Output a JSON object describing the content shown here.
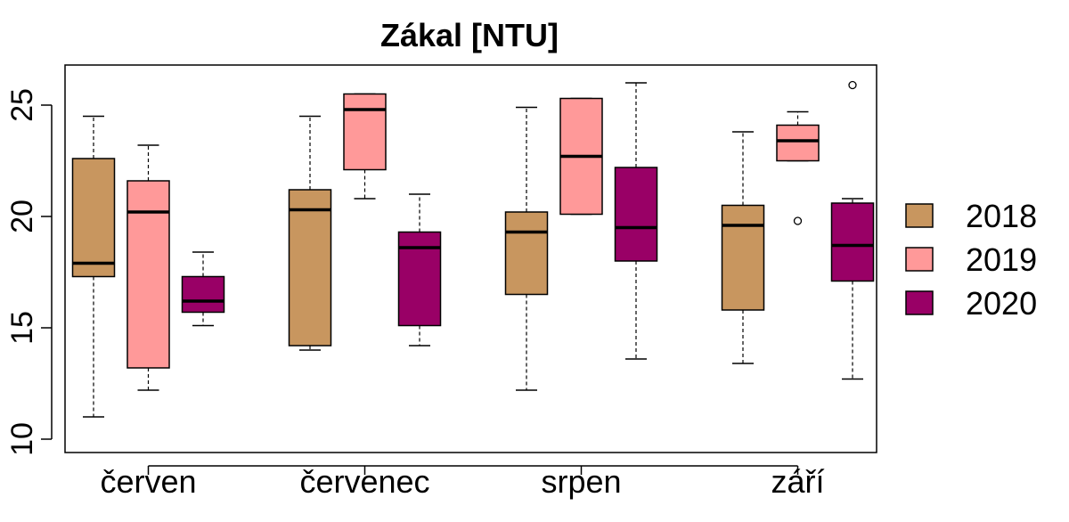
{
  "chart_data": {
    "type": "boxplot",
    "title": "Zákal [NTU]",
    "xlabel": "",
    "ylabel": "",
    "ylim": [
      9.4,
      26.8
    ],
    "yticks": [
      10,
      15,
      20,
      25
    ],
    "grid": false,
    "legend_position": "right",
    "categories": [
      "červen",
      "červenec",
      "srpen",
      "září"
    ],
    "series": [
      {
        "name": "2018",
        "color": "#c8965f",
        "boxes": [
          {
            "min": 11.0,
            "q1": 17.3,
            "median": 17.9,
            "q3": 22.6,
            "max": 24.5,
            "outliers": []
          },
          {
            "min": 14.0,
            "q1": 14.2,
            "median": 20.3,
            "q3": 21.2,
            "max": 24.5,
            "outliers": []
          },
          {
            "min": 12.2,
            "q1": 16.5,
            "median": 19.3,
            "q3": 20.2,
            "max": 24.9,
            "outliers": []
          },
          {
            "min": 13.4,
            "q1": 15.8,
            "median": 19.6,
            "q3": 20.5,
            "max": 23.8,
            "outliers": []
          }
        ]
      },
      {
        "name": "2019",
        "color": "#ff9999",
        "boxes": [
          {
            "min": 12.2,
            "q1": 13.2,
            "median": 20.2,
            "q3": 21.6,
            "max": 23.2,
            "outliers": []
          },
          {
            "min": 20.8,
            "q1": 22.1,
            "median": 24.8,
            "q3": 25.5,
            "max": 25.5,
            "outliers": []
          },
          {
            "min": 20.1,
            "q1": 20.1,
            "median": 22.7,
            "q3": 25.3,
            "max": 25.3,
            "outliers": []
          },
          {
            "min": 22.5,
            "q1": 22.5,
            "median": 23.4,
            "q3": 24.1,
            "max": 24.7,
            "outliers": [
              19.8
            ]
          }
        ]
      },
      {
        "name": "2020",
        "color": "#990066",
        "boxes": [
          {
            "min": 15.1,
            "q1": 15.7,
            "median": 16.2,
            "q3": 17.3,
            "max": 18.4,
            "outliers": []
          },
          {
            "min": 14.2,
            "q1": 15.1,
            "median": 18.6,
            "q3": 19.3,
            "max": 21.0,
            "outliers": []
          },
          {
            "min": 13.6,
            "q1": 18.0,
            "median": 19.5,
            "q3": 22.2,
            "max": 26.0,
            "outliers": []
          },
          {
            "min": 12.7,
            "q1": 17.1,
            "median": 18.7,
            "q3": 20.6,
            "max": 20.8,
            "outliers": [
              25.9
            ]
          }
        ]
      }
    ]
  }
}
